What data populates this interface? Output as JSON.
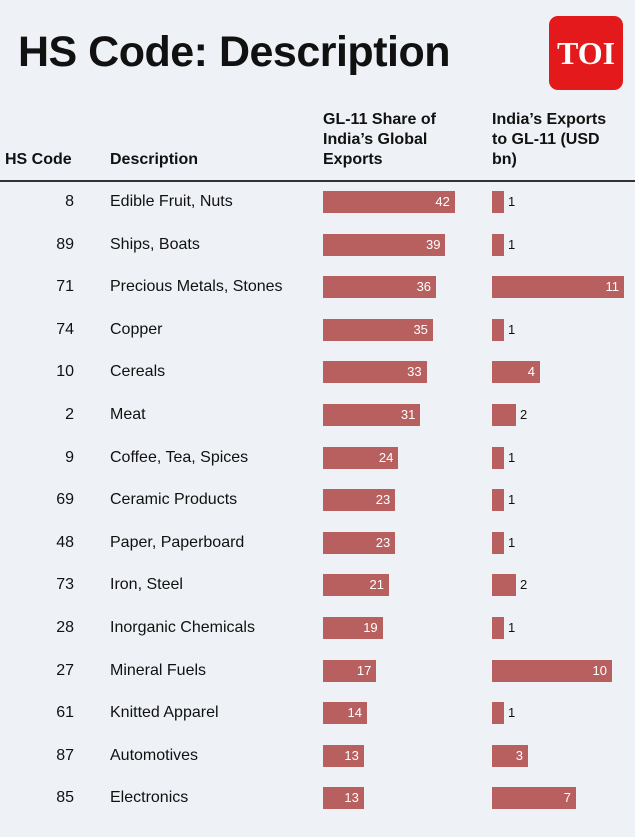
{
  "title": "HS Code: Description",
  "logo": "TOI",
  "chart_data": {
    "type": "table",
    "columns": [
      "HS Code",
      "Description",
      "GL-11 Share of India’s Global Exports",
      "India’s Exports to GL-11 (USD bn)"
    ],
    "rows": [
      {
        "code": "8",
        "desc": "Edible Fruit, Nuts",
        "share": 42,
        "exports": 1
      },
      {
        "code": "89",
        "desc": "Ships, Boats",
        "share": 39,
        "exports": 1
      },
      {
        "code": "71",
        "desc": "Precious Metals, Stones",
        "share": 36,
        "exports": 11
      },
      {
        "code": "74",
        "desc": "Copper",
        "share": 35,
        "exports": 1
      },
      {
        "code": "10",
        "desc": "Cereals",
        "share": 33,
        "exports": 4
      },
      {
        "code": "2",
        "desc": "Meat",
        "share": 31,
        "exports": 2
      },
      {
        "code": "9",
        "desc": "Coffee, Tea, Spices",
        "share": 24,
        "exports": 1
      },
      {
        "code": "69",
        "desc": "Ceramic Products",
        "share": 23,
        "exports": 1
      },
      {
        "code": "48",
        "desc": "Paper, Paperboard",
        "share": 23,
        "exports": 1
      },
      {
        "code": "73",
        "desc": "Iron, Steel",
        "share": 21,
        "exports": 2
      },
      {
        "code": "28",
        "desc": "Inorganic Chemicals",
        "share": 19,
        "exports": 1
      },
      {
        "code": "27",
        "desc": "Mineral Fuels",
        "share": 17,
        "exports": 10
      },
      {
        "code": "61",
        "desc": "Knitted Apparel",
        "share": 14,
        "exports": 1
      },
      {
        "code": "87",
        "desc": "Automotives",
        "share": 13,
        "exports": 3
      },
      {
        "code": "85",
        "desc": "Electronics",
        "share": 13,
        "exports": 7
      }
    ],
    "bar_color": "#b86060"
  }
}
